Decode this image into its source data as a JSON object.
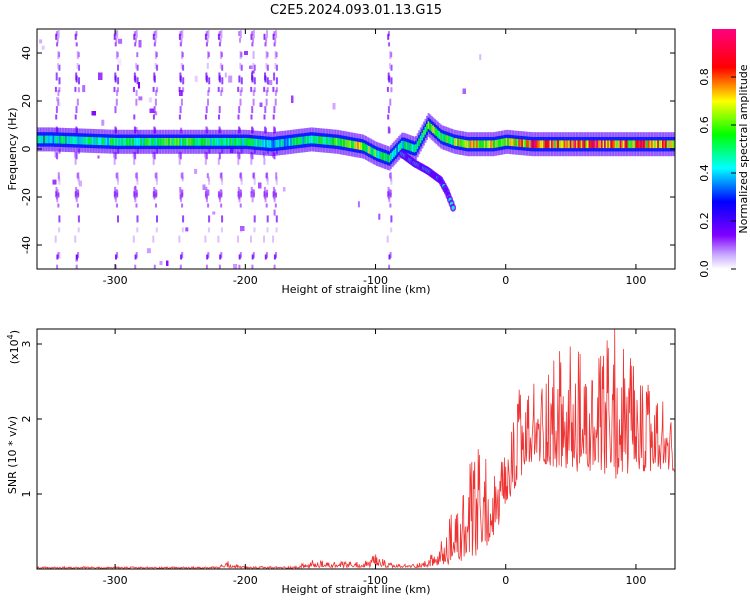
{
  "title": "C2E5.2024.093.01.13.G15",
  "chart_data": [
    {
      "type": "heatmap",
      "xlabel": "Height of straight line (km)",
      "ylabel": "Frequency (Hz)",
      "xlim": [
        -360,
        130
      ],
      "ylim": [
        -50,
        50
      ],
      "xticks": [
        -300,
        -200,
        -100,
        0,
        100
      ],
      "xtick_labels": [
        "-300",
        "-200",
        "-100",
        "0",
        "100"
      ],
      "yticks": [
        -40,
        -20,
        0,
        20,
        40
      ],
      "ytick_labels": [
        "-40",
        "-20",
        "0",
        "20",
        "40"
      ],
      "colorbar": {
        "label": "Normalized spectral amplitude",
        "range": [
          0,
          1
        ],
        "ticks": [
          0.0,
          0.2,
          0.4,
          0.6,
          0.8
        ],
        "tick_labels": [
          "0.0",
          "0.2",
          "0.4",
          "0.6",
          "0.8"
        ],
        "colormap": [
          "#ffffff",
          "#8000ff",
          "#0000ff",
          "#00ffff",
          "#00ff00",
          "#ffff00",
          "#ff0000",
          "#ff00ff"
        ]
      },
      "ridge": {
        "description_free": true,
        "x": [
          -350,
          -300,
          -250,
          -200,
          -180,
          -150,
          -130,
          -110,
          -100,
          -90,
          -80,
          -70,
          -60,
          -50,
          -40,
          -30,
          -20,
          -10,
          0,
          20,
          50,
          100,
          130
        ],
        "frequency": [
          4,
          3,
          3,
          3,
          2,
          4,
          3,
          1,
          -2,
          -4,
          2,
          0,
          10,
          5,
          3,
          2,
          2,
          2,
          3,
          2,
          2,
          2,
          2
        ],
        "amplitude": [
          0.45,
          0.5,
          0.55,
          0.5,
          0.4,
          0.5,
          0.55,
          0.7,
          0.55,
          0.5,
          0.45,
          0.5,
          0.6,
          0.55,
          0.6,
          0.7,
          0.7,
          0.65,
          0.6,
          0.8,
          0.8,
          0.75,
          0.75
        ]
      },
      "branch": {
        "x": [
          -80,
          -70,
          -60,
          -55,
          -50,
          -45,
          -40
        ],
        "frequency": [
          -2,
          -6,
          -9,
          -11,
          -13,
          -18,
          -25
        ]
      }
    },
    {
      "type": "line",
      "xlabel": "Height of straight line (km)",
      "ylabel": "SNR (10 * v/v)",
      "multiplier": "(x10",
      "multiplier_exp": "4",
      "multiplier_close": ")",
      "xlim": [
        -360,
        130
      ],
      "ylim": [
        0,
        3.2
      ],
      "xticks": [
        -300,
        -200,
        -100,
        0,
        100
      ],
      "xtick_labels": [
        "-300",
        "-200",
        "-100",
        "0",
        "100"
      ],
      "yticks": [
        1,
        2,
        3
      ],
      "ytick_labels": [
        "1",
        "2",
        "3"
      ],
      "color": "#ee3333",
      "envelope": {
        "x": [
          -360,
          -220,
          -215,
          -200,
          -160,
          -150,
          -130,
          -110,
          -100,
          -95,
          -90,
          -80,
          -70,
          -60,
          -50,
          -45,
          -40,
          -30,
          -20,
          -10,
          0,
          10,
          20,
          30,
          50,
          70,
          85,
          100,
          130
        ],
        "y": [
          0.03,
          0.03,
          0.12,
          0.03,
          0.04,
          0.12,
          0.1,
          0.1,
          0.2,
          0.15,
          0.08,
          0.06,
          0.08,
          0.12,
          0.3,
          0.5,
          0.7,
          1.1,
          1.5,
          1.2,
          1.4,
          2.2,
          2.3,
          2.6,
          2.7,
          2.5,
          3.2,
          2.4,
          2.0
        ],
        "base": [
          0.01,
          0.01,
          0.02,
          0.01,
          0.01,
          0.02,
          0.02,
          0.02,
          0.03,
          0.03,
          0.02,
          0.02,
          0.02,
          0.03,
          0.05,
          0.05,
          0.1,
          0.1,
          0.2,
          0.4,
          0.8,
          1.2,
          1.4,
          1.4,
          1.3,
          1.3,
          1.2,
          1.3,
          1.3
        ]
      }
    }
  ]
}
